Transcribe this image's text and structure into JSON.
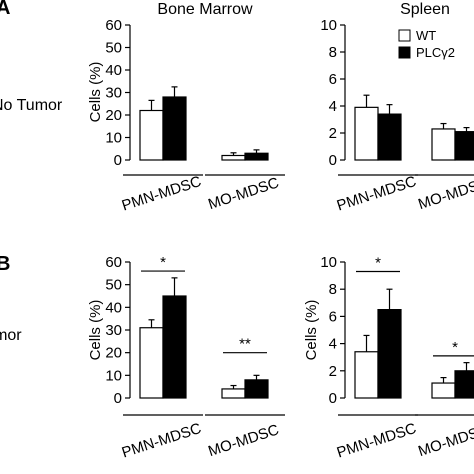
{
  "panel_labels": [
    "A",
    "B"
  ],
  "row_labels": [
    "No Tumor",
    "Tumor"
  ],
  "column_titles": [
    "Bone Marrow",
    "Spleen"
  ],
  "legend": [
    {
      "label": "WT",
      "color": "#ffffff"
    },
    {
      "label": "PLCγ2",
      "color": "#000000"
    }
  ],
  "colors": {
    "wt": "#ffffff",
    "plc": "#000000",
    "stroke": "#000000"
  },
  "chart_data": [
    {
      "type": "bar",
      "id": "no-tumor-bone-marrow",
      "title": "Bone Marrow",
      "ylabel": "Cells (%)",
      "ylim": [
        0,
        60
      ],
      "yticks": [
        0,
        10,
        20,
        30,
        40,
        50,
        60
      ],
      "categories": [
        "PMN-MDSC",
        "MO-MDSC"
      ],
      "series": [
        {
          "name": "WT",
          "values": [
            22,
            2
          ],
          "errors": [
            4.5,
            1.2
          ]
        },
        {
          "name": "PLCγ2",
          "values": [
            28,
            3
          ],
          "errors": [
            4.5,
            1.5
          ]
        }
      ],
      "significance": []
    },
    {
      "type": "bar",
      "id": "no-tumor-spleen",
      "title": "Spleen",
      "ylabel": "",
      "ylim": [
        0,
        10
      ],
      "yticks": [
        0,
        2,
        4,
        6,
        8,
        10
      ],
      "categories": [
        "PMN-MDSC",
        "MO-MDSC"
      ],
      "series": [
        {
          "name": "WT",
          "values": [
            3.9,
            2.3
          ],
          "errors": [
            0.9,
            0.4
          ]
        },
        {
          "name": "PLCγ2",
          "values": [
            3.4,
            2.1
          ],
          "errors": [
            0.7,
            0.3
          ]
        }
      ],
      "significance": []
    },
    {
      "type": "bar",
      "id": "tumor-bone-marrow",
      "title": "",
      "ylabel": "Cells (%)",
      "ylim": [
        0,
        60
      ],
      "yticks": [
        0,
        10,
        20,
        30,
        40,
        50,
        60
      ],
      "categories": [
        "PMN-MDSC",
        "MO-MDSC"
      ],
      "series": [
        {
          "name": "WT",
          "values": [
            31,
            4
          ],
          "errors": [
            3.5,
            1.5
          ]
        },
        {
          "name": "PLCγ2",
          "values": [
            45,
            8
          ],
          "errors": [
            8,
            2
          ]
        }
      ],
      "significance": [
        {
          "category": 0,
          "label": "*",
          "y": 56
        },
        {
          "category": 1,
          "label": "**",
          "y": 20
        }
      ]
    },
    {
      "type": "bar",
      "id": "tumor-spleen",
      "title": "",
      "ylabel": "Cells (%)",
      "ylim": [
        0,
        10
      ],
      "yticks": [
        0,
        2,
        4,
        6,
        8,
        10
      ],
      "categories": [
        "PMN-MDSC",
        "MO-MDSC"
      ],
      "series": [
        {
          "name": "WT",
          "values": [
            3.4,
            1.1
          ],
          "errors": [
            1.2,
            0.4
          ]
        },
        {
          "name": "PLCγ2",
          "values": [
            6.5,
            2.0
          ],
          "errors": [
            1.5,
            0.6
          ]
        }
      ],
      "significance": [
        {
          "category": 0,
          "label": "*",
          "y": 9.3
        },
        {
          "category": 1,
          "label": "*",
          "y": 3.1
        }
      ]
    }
  ]
}
